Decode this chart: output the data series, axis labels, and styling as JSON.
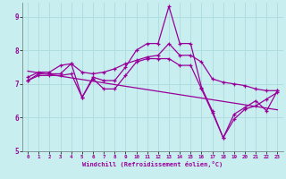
{
  "title": "",
  "xlabel": "Windchill (Refroidissement éolien,°C)",
  "bg_color": "#c8eef0",
  "grid_color": "#b0dde0",
  "line_color": "#990099",
  "xlim": [
    -0.5,
    23.5
  ],
  "ylim": [
    5,
    9.4
  ],
  "xticks": [
    0,
    1,
    2,
    3,
    4,
    5,
    6,
    7,
    8,
    9,
    10,
    11,
    12,
    13,
    14,
    15,
    16,
    17,
    18,
    19,
    20,
    21,
    22,
    23
  ],
  "yticks": [
    5,
    6,
    7,
    8,
    9
  ],
  "hours": [
    0,
    1,
    2,
    3,
    4,
    5,
    6,
    7,
    8,
    9,
    10,
    11,
    12,
    13,
    14,
    15,
    16,
    17,
    18,
    19,
    20,
    21,
    22,
    23
  ],
  "data_main": [
    7.1,
    7.3,
    7.3,
    7.3,
    7.6,
    6.6,
    7.2,
    7.1,
    7.1,
    7.5,
    8.0,
    8.2,
    8.2,
    9.3,
    8.2,
    8.2,
    6.9,
    6.2,
    5.4,
    6.1,
    6.3,
    6.5,
    6.2,
    6.8
  ],
  "data_max": [
    7.2,
    7.35,
    7.35,
    7.55,
    7.6,
    7.35,
    7.3,
    7.35,
    7.45,
    7.6,
    7.7,
    7.8,
    7.85,
    8.2,
    7.85,
    7.85,
    7.65,
    7.15,
    7.05,
    7.0,
    6.95,
    6.85,
    6.8,
    6.8
  ],
  "data_min": [
    7.1,
    7.25,
    7.25,
    7.25,
    7.3,
    6.6,
    7.15,
    6.85,
    6.85,
    7.25,
    7.65,
    7.75,
    7.75,
    7.75,
    7.55,
    7.55,
    6.85,
    6.15,
    5.4,
    5.95,
    6.25,
    6.35,
    6.55,
    6.75
  ],
  "data_trend": [
    7.38,
    7.33,
    7.28,
    7.23,
    7.18,
    7.13,
    7.08,
    7.03,
    6.98,
    6.93,
    6.88,
    6.83,
    6.78,
    6.73,
    6.68,
    6.63,
    6.58,
    6.53,
    6.48,
    6.43,
    6.38,
    6.33,
    6.28,
    6.23
  ]
}
